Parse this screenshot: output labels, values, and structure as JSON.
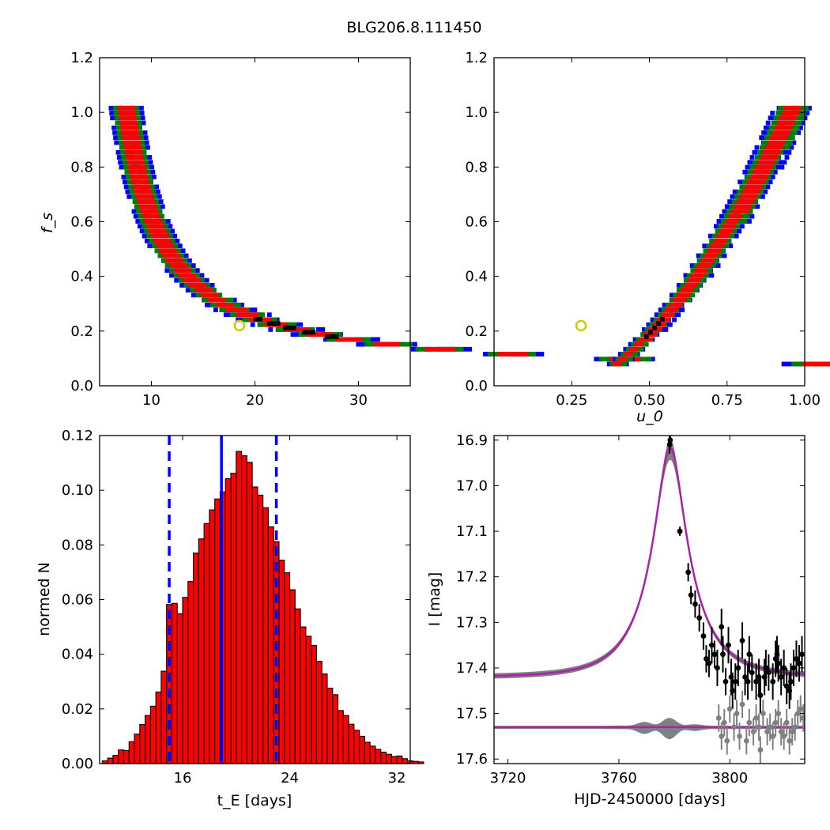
{
  "figure": {
    "title": "BLG206.8.111450"
  },
  "chart_data": [
    {
      "id": "ax1",
      "type": "heatmap",
      "title": "",
      "xlabel": "",
      "ylabel": "f_s",
      "xlim": [
        5,
        35
      ],
      "ylim": [
        0,
        1.2
      ],
      "xticks": [
        10,
        20,
        30
      ],
      "xtick_labels": [
        "10",
        "20",
        "30"
      ],
      "yticks": [
        0,
        0.2,
        0.4,
        0.6,
        0.8,
        1.0,
        1.2
      ],
      "ytick_labels": [
        "0.0",
        "0.2",
        "0.4",
        "0.6",
        "0.8",
        "1.0",
        "1.2"
      ],
      "colors": {
        "blue": "#0000ff",
        "green": "#008000",
        "red": "#ff0000",
        "black": "#000000"
      },
      "best_fit": {
        "x": 18.5,
        "y": 0.22
      },
      "curve": {
        "x0": 3.8,
        "y_scale": 3.75,
        "y_offset": 0.03,
        "y_min": 0.08,
        "y_max": 1.03
      }
    },
    {
      "id": "ax2",
      "type": "heatmap",
      "title": "",
      "xlabel": "u_0",
      "ylabel": "",
      "xlim": [
        0,
        1.0
      ],
      "ylim": [
        0,
        1.2
      ],
      "xticks": [
        0.25,
        0.5,
        0.75,
        1.0
      ],
      "xtick_labels": [
        "0.25",
        "0.50",
        "0.75",
        "1.00"
      ],
      "yticks": [
        0,
        0.2,
        0.4,
        0.6,
        0.8,
        1.0,
        1.2
      ],
      "ytick_labels": [
        "0.0",
        "0.2",
        "0.4",
        "0.6",
        "0.8",
        "1.0",
        "1.2"
      ],
      "colors": {
        "blue": "#0000ff",
        "green": "#008000",
        "red": "#ff0000",
        "black": "#000000"
      },
      "best_fit": {
        "x": 0.28,
        "y": 0.22
      },
      "curve": {
        "a": 1.29,
        "b": -0.09,
        "c": -0.085,
        "y_min": 0.08,
        "y_max": 1.03
      }
    },
    {
      "id": "ax3",
      "type": "bar",
      "title": "",
      "xlabel": "t_E [days]",
      "ylabel": "normed N",
      "xlim": [
        9.8,
        33
      ],
      "ylim": [
        0,
        0.12
      ],
      "xticks": [
        16,
        24,
        32
      ],
      "xtick_labels": [
        "16",
        "24",
        "32"
      ],
      "yticks": [
        0,
        0.02,
        0.04,
        0.06,
        0.08,
        0.1,
        0.12
      ],
      "ytick_labels": [
        "0.00",
        "0.02",
        "0.04",
        "0.06",
        "0.08",
        "0.10",
        "0.12"
      ],
      "bar_color": "#ff0000",
      "bin_start": 10.0,
      "bin_width": 0.4,
      "values": [
        0.001,
        0.002,
        0.003,
        0.005,
        0.0048,
        0.008,
        0.0108,
        0.0143,
        0.0176,
        0.021,
        0.0262,
        0.0338,
        0.0582,
        0.0586,
        0.0548,
        0.0608,
        0.0666,
        0.077,
        0.0822,
        0.0878,
        0.0928,
        0.0968,
        0.0994,
        0.1042,
        0.1062,
        0.1142,
        0.1126,
        0.1102,
        0.1012,
        0.0982,
        0.0936,
        0.0866,
        0.0812,
        0.0744,
        0.0698,
        0.0636,
        0.0566,
        0.05,
        0.0466,
        0.0432,
        0.0374,
        0.0328,
        0.0276,
        0.0252,
        0.0194,
        0.0176,
        0.0144,
        0.0122,
        0.01,
        0.0078,
        0.0064,
        0.0052,
        0.0042,
        0.0034,
        0.0026,
        0.0028,
        0.0018,
        0.001,
        0.0008,
        0.0006
      ],
      "vlines": [
        {
          "x": 18.9,
          "style": "solid",
          "color": "#0000ff"
        },
        {
          "x": 15.0,
          "style": "dashed",
          "color": "#0000ff"
        },
        {
          "x": 23.0,
          "style": "dashed",
          "color": "#0000ff"
        }
      ]
    },
    {
      "id": "ax4",
      "type": "scatter",
      "title": "",
      "xlabel": "HJD-2450000 [days]",
      "ylabel": "I [mag]",
      "xlim": [
        3715,
        3827
      ],
      "ylim": [
        17.61,
        16.89
      ],
      "xticks": [
        3720,
        3760,
        3800
      ],
      "xtick_labels": [
        "3720",
        "3760",
        "3800"
      ],
      "yticks": [
        16.9,
        17.0,
        17.1,
        17.2,
        17.3,
        17.4,
        17.5,
        17.6
      ],
      "ytick_labels": [
        "16.9",
        "17.0",
        "17.1",
        "17.2",
        "17.3",
        "17.4",
        "17.5",
        "17.6"
      ],
      "model": {
        "t0": 3778.5,
        "tE": 18.5,
        "u0": 0.28,
        "base": 17.42,
        "fs": 0.22,
        "color": "#aa22aa"
      },
      "residual_baseline": 17.53,
      "series": [
        {
          "color": "#000000",
          "points": [
            [
              3778.5,
              16.9,
              0.01
            ],
            [
              3778.3,
              16.91,
              0.02
            ],
            [
              3782.0,
              17.1,
              0.01
            ],
            [
              3785.0,
              17.19,
              0.02
            ],
            [
              3786.0,
              17.24,
              0.02
            ],
            [
              3787.5,
              17.26,
              0.03
            ],
            [
              3789.0,
              17.29,
              0.03
            ],
            [
              3790.5,
              17.33,
              0.03
            ],
            [
              3791.5,
              17.38,
              0.03
            ],
            [
              3792.5,
              17.39,
              0.03
            ],
            [
              3793.5,
              17.35,
              0.04
            ],
            [
              3794.5,
              17.37,
              0.03
            ],
            [
              3795.5,
              17.4,
              0.04
            ],
            [
              3797.0,
              17.31,
              0.04
            ],
            [
              3797.5,
              17.37,
              0.04
            ],
            [
              3798.5,
              17.43,
              0.03
            ],
            [
              3799.5,
              17.35,
              0.04
            ],
            [
              3800.5,
              17.42,
              0.04
            ],
            [
              3801.0,
              17.45,
              0.04
            ],
            [
              3802.0,
              17.43,
              0.04
            ],
            [
              3803.0,
              17.4,
              0.04
            ],
            [
              3804.5,
              17.34,
              0.04
            ],
            [
              3805.5,
              17.42,
              0.04
            ],
            [
              3806.5,
              17.43,
              0.04
            ],
            [
              3807.0,
              17.37,
              0.04
            ],
            [
              3808.0,
              17.41,
              0.04
            ],
            [
              3809.5,
              17.43,
              0.04
            ],
            [
              3810.5,
              17.42,
              0.04
            ],
            [
              3811.0,
              17.46,
              0.04
            ],
            [
              3812.5,
              17.42,
              0.04
            ],
            [
              3813.0,
              17.4,
              0.04
            ],
            [
              3814.0,
              17.41,
              0.04
            ],
            [
              3815.5,
              17.43,
              0.04
            ],
            [
              3816.5,
              17.38,
              0.04
            ],
            [
              3817.0,
              17.37,
              0.04
            ],
            [
              3817.5,
              17.39,
              0.04
            ],
            [
              3818.5,
              17.42,
              0.04
            ],
            [
              3819.5,
              17.4,
              0.04
            ],
            [
              3820.5,
              17.44,
              0.04
            ],
            [
              3821.5,
              17.45,
              0.04
            ],
            [
              3822.0,
              17.43,
              0.04
            ],
            [
              3823.0,
              17.4,
              0.04
            ],
            [
              3824.0,
              17.38,
              0.04
            ],
            [
              3825.0,
              17.39,
              0.04
            ],
            [
              3826.0,
              17.37,
              0.04
            ]
          ]
        },
        {
          "color": "#808080",
          "points": [
            [
              3796.0,
              17.51,
              0.03
            ],
            [
              3797.0,
              17.55,
              0.03
            ],
            [
              3798.0,
              17.52,
              0.03
            ],
            [
              3799.0,
              17.56,
              0.03
            ],
            [
              3800.0,
              17.49,
              0.03
            ],
            [
              3801.5,
              17.53,
              0.03
            ],
            [
              3802.5,
              17.5,
              0.03
            ],
            [
              3803.5,
              17.55,
              0.03
            ],
            [
              3804.5,
              17.48,
              0.03
            ],
            [
              3806.0,
              17.56,
              0.03
            ],
            [
              3807.0,
              17.52,
              0.03
            ],
            [
              3808.5,
              17.54,
              0.03
            ],
            [
              3809.5,
              17.51,
              0.03
            ],
            [
              3810.5,
              17.53,
              0.03
            ],
            [
              3811.0,
              17.58,
              0.03
            ],
            [
              3812.0,
              17.5,
              0.03
            ],
            [
              3813.5,
              17.54,
              0.03
            ],
            [
              3814.5,
              17.53,
              0.03
            ],
            [
              3815.5,
              17.55,
              0.03
            ],
            [
              3816.5,
              17.52,
              0.03
            ],
            [
              3817.5,
              17.5,
              0.03
            ],
            [
              3818.5,
              17.54,
              0.03
            ],
            [
              3819.5,
              17.55,
              0.03
            ],
            [
              3820.5,
              17.52,
              0.03
            ],
            [
              3821.5,
              17.56,
              0.03
            ],
            [
              3822.5,
              17.54,
              0.03
            ],
            [
              3823.5,
              17.53,
              0.03
            ],
            [
              3824.5,
              17.5,
              0.03
            ],
            [
              3825.5,
              17.49,
              0.03
            ],
            [
              3826.5,
              17.51,
              0.03
            ]
          ]
        }
      ]
    }
  ]
}
